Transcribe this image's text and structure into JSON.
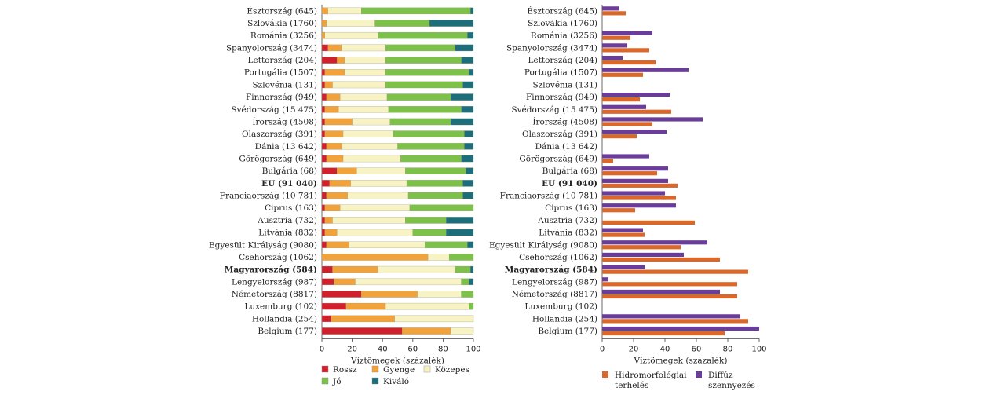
{
  "chart_data": [
    {
      "type": "bar",
      "orientation": "horizontal",
      "stacked": true,
      "categories": [
        "Észtország (645)",
        "Szlovákia (1760)",
        "Románia (3256)",
        "Spanyolország (3474)",
        "Lettország (204)",
        "Portugália (1507)",
        "Szlovénia (131)",
        "Finnország (949)",
        "Svédország (15 475)",
        "Írország (4508)",
        "Olaszország (391)",
        "Dánia (13 642)",
        "Görögország (649)",
        "Bulgária (68)",
        "EU (91 040)",
        "Franciaország (10 781)",
        "Ciprus (163)",
        "Ausztria (732)",
        "Litvánia (832)",
        "Egyesült Királyság (9080)",
        "Csehország (1062)",
        "Magyarország (584)",
        "Lengyelország (987)",
        "Németország (8817)",
        "Luxemburg (102)",
        "Hollandia (254)",
        "Belgium (177)"
      ],
      "bold_categories": [
        "EU (91 040)",
        "Magyarország (584)"
      ],
      "series": [
        {
          "name": "Rossz",
          "color": "#d0202e",
          "values": [
            0,
            0,
            0,
            4,
            10,
            2,
            2,
            3,
            2,
            2,
            2,
            3,
            3,
            10,
            5,
            3,
            2,
            2,
            2,
            3,
            0,
            7,
            8,
            26,
            16,
            6,
            53
          ]
        },
        {
          "name": "Gyenge",
          "color": "#f2a23a",
          "values": [
            4,
            3,
            2,
            9,
            5,
            13,
            5,
            9,
            9,
            18,
            12,
            10,
            11,
            13,
            14,
            14,
            10,
            5,
            8,
            15,
            70,
            30,
            14,
            37,
            26,
            42,
            32
          ]
        },
        {
          "name": "Közepes",
          "color": "#f7f3c4",
          "values": [
            22,
            32,
            35,
            29,
            27,
            27,
            35,
            31,
            33,
            25,
            33,
            37,
            38,
            32,
            37,
            40,
            46,
            48,
            50,
            50,
            14,
            51,
            70,
            29,
            55,
            52,
            15
          ]
        },
        {
          "name": "Jó",
          "color": "#7dc04a",
          "values": [
            72,
            36,
            59,
            46,
            50,
            55,
            51,
            42,
            48,
            40,
            47,
            44,
            40,
            40,
            37,
            36,
            42,
            27,
            22,
            28,
            16,
            10,
            5,
            8,
            3,
            0,
            0
          ]
        },
        {
          "name": "Kiváló",
          "color": "#1c6e7a",
          "values": [
            2,
            29,
            4,
            12,
            8,
            3,
            7,
            15,
            8,
            15,
            6,
            6,
            8,
            5,
            7,
            7,
            0,
            18,
            18,
            4,
            0,
            2,
            3,
            0,
            0,
            0,
            0
          ]
        }
      ],
      "xlabel": "Víztömegek (százalék)",
      "xlim": [
        0,
        100
      ],
      "xticks": [
        "0",
        "20",
        "40",
        "60",
        "80",
        "100"
      ],
      "legend_placement": "bottom"
    },
    {
      "type": "bar",
      "orientation": "horizontal",
      "stacked": false,
      "categories": [
        "Észtország (645)",
        "Szlovákia (1760)",
        "Románia (3256)",
        "Spanyolország (3474)",
        "Lettország (204)",
        "Portugália (1507)",
        "Szlovénia (131)",
        "Finnország (949)",
        "Svédország (15 475)",
        "Írország (4508)",
        "Olaszország (391)",
        "Dánia (13 642)",
        "Görögország (649)",
        "Bulgária (68)",
        "EU (91 040)",
        "Franciaország (10 781)",
        "Ciprus (163)",
        "Ausztria (732)",
        "Litvánia (832)",
        "Egyesült Királyság (9080)",
        "Csehország (1062)",
        "Magyarország (584)",
        "Lengyelország (987)",
        "Németország (8817)",
        "Luxemburg (102)",
        "Hollandia (254)",
        "Belgium (177)"
      ],
      "bold_categories": [
        "EU (91 040)",
        "Magyarország (584)"
      ],
      "series": [
        {
          "name": "Diffúz szennyezés",
          "color": "#6a3d9a",
          "values": [
            11,
            0,
            32,
            16,
            13,
            55,
            0,
            43,
            28,
            64,
            41,
            0,
            30,
            42,
            42,
            40,
            47,
            0,
            26,
            67,
            52,
            27,
            4,
            75,
            0,
            88,
            100
          ]
        },
        {
          "name": "Hidromorfológiai terhelés",
          "color": "#d9682a",
          "values": [
            15,
            0,
            18,
            30,
            34,
            26,
            0,
            24,
            44,
            32,
            22,
            0,
            7,
            35,
            48,
            47,
            21,
            59,
            27,
            50,
            75,
            93,
            86,
            86,
            0,
            93,
            78
          ]
        }
      ],
      "xlabel": "Víztömegek (százalék)",
      "xlim": [
        0,
        100
      ],
      "xticks": [
        "0",
        "20",
        "40",
        "60",
        "80",
        "100"
      ],
      "legend_placement": "bottom"
    }
  ]
}
